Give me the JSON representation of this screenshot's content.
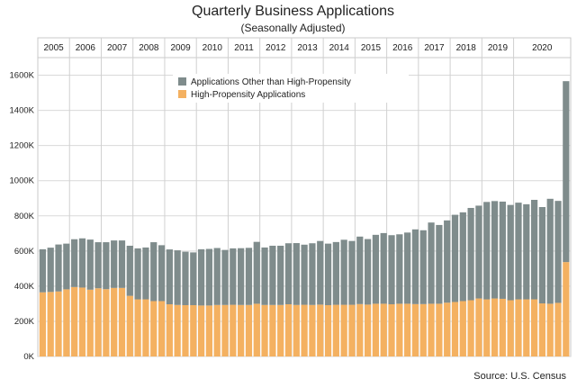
{
  "title": "Quarterly Business Applications",
  "subtitle": "(Seasonally Adjusted)",
  "source": "Source:  U.S. Census",
  "chart_data": {
    "type": "bar",
    "stacked": true,
    "years": [
      "2005",
      "2006",
      "2007",
      "2008",
      "2009",
      "2010",
      "2011",
      "2012",
      "2013",
      "2014",
      "2015",
      "2016",
      "2017",
      "2018",
      "2019",
      "2020"
    ],
    "yticks": [
      "0K",
      "200K",
      "400K",
      "600K",
      "800K",
      "1000K",
      "1200K",
      "1400K",
      "1600K"
    ],
    "ylim": [
      0,
      1700000
    ],
    "grid": true,
    "legend_position": "top-left",
    "colors": {
      "other": "#7f8c8c",
      "hpa": "#f4b161"
    },
    "series": [
      {
        "name": "Applications Other than High-Propensity",
        "key": "other",
        "values": [
          245000,
          252000,
          267000,
          260000,
          272000,
          280000,
          285000,
          262000,
          267000,
          270000,
          270000,
          285000,
          290000,
          295000,
          335000,
          318000,
          312000,
          311000,
          304000,
          300000,
          320000,
          322000,
          324000,
          313000,
          321000,
          323000,
          325000,
          352000,
          327000,
          337000,
          337000,
          347000,
          352000,
          342000,
          351000,
          362000,
          350000,
          357000,
          370000,
          363000,
          384000,
          373000,
          392000,
          402000,
          393000,
          395000,
          405000,
          425000,
          420000,
          462000,
          448000,
          468000,
          496000,
          505000,
          525000,
          528000,
          554000,
          554000,
          553000,
          542000,
          550000,
          541000,
          566000,
          548000,
          597000,
          580000,
          1029000
        ]
      },
      {
        "name": "High-Propensity Applications",
        "key": "hpa",
        "values": [
          365000,
          367000,
          370000,
          382000,
          395000,
          392000,
          380000,
          388000,
          383000,
          390000,
          390000,
          345000,
          325000,
          325000,
          315000,
          315000,
          297000,
          293000,
          292000,
          292000,
          290000,
          290000,
          293000,
          293000,
          294000,
          293000,
          293000,
          300000,
          293000,
          293000,
          293000,
          297000,
          293000,
          294000,
          293000,
          295000,
          292000,
          294000,
          294000,
          294000,
          298000,
          295000,
          300000,
          300000,
          297000,
          300000,
          300000,
          298000,
          298000,
          300000,
          300000,
          306000,
          310000,
          315000,
          320000,
          330000,
          325000,
          330000,
          328000,
          320000,
          325000,
          325000,
          325000,
          302000,
          300000,
          305000,
          537000
        ]
      }
    ]
  }
}
